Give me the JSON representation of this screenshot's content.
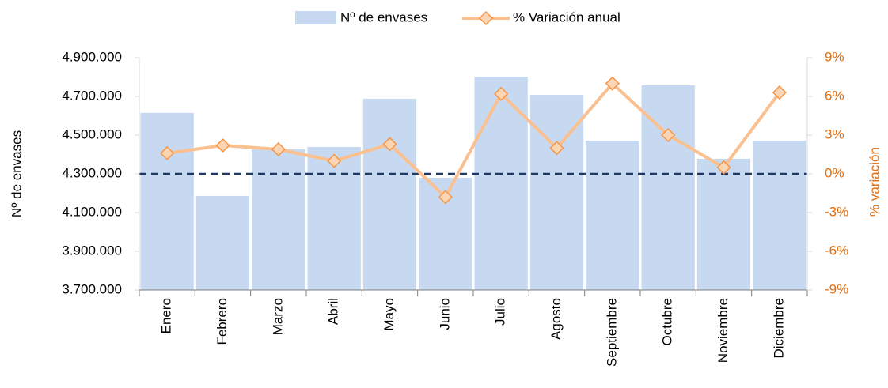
{
  "chart_data": {
    "type": "bar_line",
    "categories": [
      "Enero",
      "Febrero",
      "Marzo",
      "Abril",
      "Mayo",
      "Junio",
      "Julio",
      "Agosto",
      "Septiembre",
      "Octubre",
      "Noviembre",
      "Diciembre"
    ],
    "series": [
      {
        "name": "Nº de envases",
        "type": "bar",
        "color": "#c6d9f1",
        "values": [
          4615000,
          4186000,
          4427000,
          4439000,
          4688000,
          4280000,
          4802000,
          4708000,
          4471000,
          4757000,
          4378000,
          4471000
        ]
      },
      {
        "name": "% Variación anual",
        "type": "line",
        "axis": "y2",
        "color": "#fac090",
        "marker_color": "#f79646",
        "values": [
          1.6,
          2.2,
          1.9,
          1.0,
          2.3,
          -1.8,
          6.2,
          2.0,
          7.0,
          3.0,
          0.5,
          6.3
        ]
      }
    ],
    "ylabel": "Nº de envases",
    "y2label": "% variación",
    "ylim": [
      3700000,
      4900000
    ],
    "yticks": [
      {
        "value": 3700000,
        "label": "3.700.000"
      },
      {
        "value": 3900000,
        "label": "3.900.000"
      },
      {
        "value": 4100000,
        "label": "4.100.000"
      },
      {
        "value": 4300000,
        "label": "4.300.000"
      },
      {
        "value": 4500000,
        "label": "4.500.000"
      },
      {
        "value": 4700000,
        "label": "4.700.000"
      },
      {
        "value": 4900000,
        "label": "4.900.000"
      }
    ],
    "y2lim": [
      -9,
      9
    ],
    "y2ticks": [
      {
        "value": -9,
        "label": "-9%"
      },
      {
        "value": -6,
        "label": "-6%"
      },
      {
        "value": -3,
        "label": "-3%"
      },
      {
        "value": 0,
        "label": "0%"
      },
      {
        "value": 3,
        "label": "3%"
      },
      {
        "value": 6,
        "label": "6%"
      },
      {
        "value": 9,
        "label": "9%"
      }
    ],
    "y2_color": "#e46c0a",
    "reference_line": {
      "axis": "y2",
      "value": 0,
      "color": "#1f3864"
    },
    "legend": "top"
  }
}
